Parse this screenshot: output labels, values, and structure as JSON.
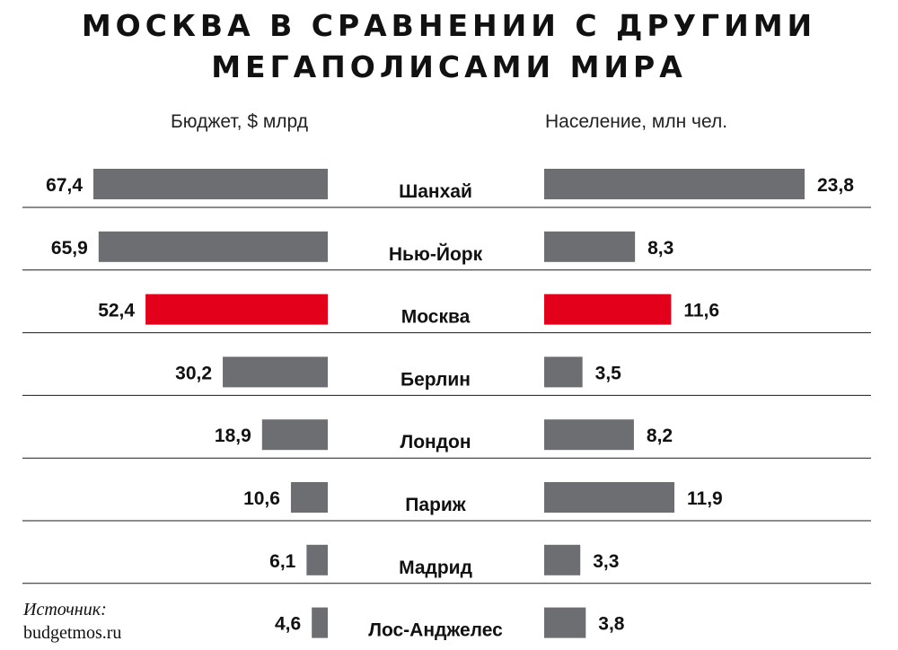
{
  "title_line1": "МОСКВА В СРАВНЕНИИ С ДРУГИМИ",
  "title_line2": "МЕГАПОЛИСАМИ МИРА",
  "left_label": "Бюджет, $ млрд",
  "right_label": "Население, млн чел.",
  "source": {
    "label": "Источник:",
    "url": "budgetmos.ru"
  },
  "colors": {
    "bar": "#6d6e71",
    "highlight": "#e2001a",
    "divider": "#1a1a1a"
  },
  "chart_data": {
    "type": "bar",
    "categories": [
      "Шанхай",
      "Нью-Йорк",
      "Москва",
      "Берлин",
      "Лондон",
      "Париж",
      "Мадрид",
      "Лос-Анджелес"
    ],
    "highlight": "Москва",
    "series": [
      {
        "name": "Бюджет, $ млрд",
        "values": [
          67.4,
          65.9,
          52.4,
          30.2,
          18.9,
          10.6,
          6.1,
          4.6
        ],
        "labels": [
          "67,4",
          "65,9",
          "52,4",
          "30,2",
          "18,9",
          "10,6",
          "6,1",
          "4,6"
        ]
      },
      {
        "name": "Население, млн чел.",
        "values": [
          23.8,
          8.3,
          11.6,
          3.5,
          8.2,
          11.9,
          3.3,
          3.8
        ],
        "labels": [
          "23,8",
          "8,3",
          "11,6",
          "3,5",
          "8,2",
          "11,9",
          "3,3",
          "3,8"
        ]
      }
    ]
  }
}
